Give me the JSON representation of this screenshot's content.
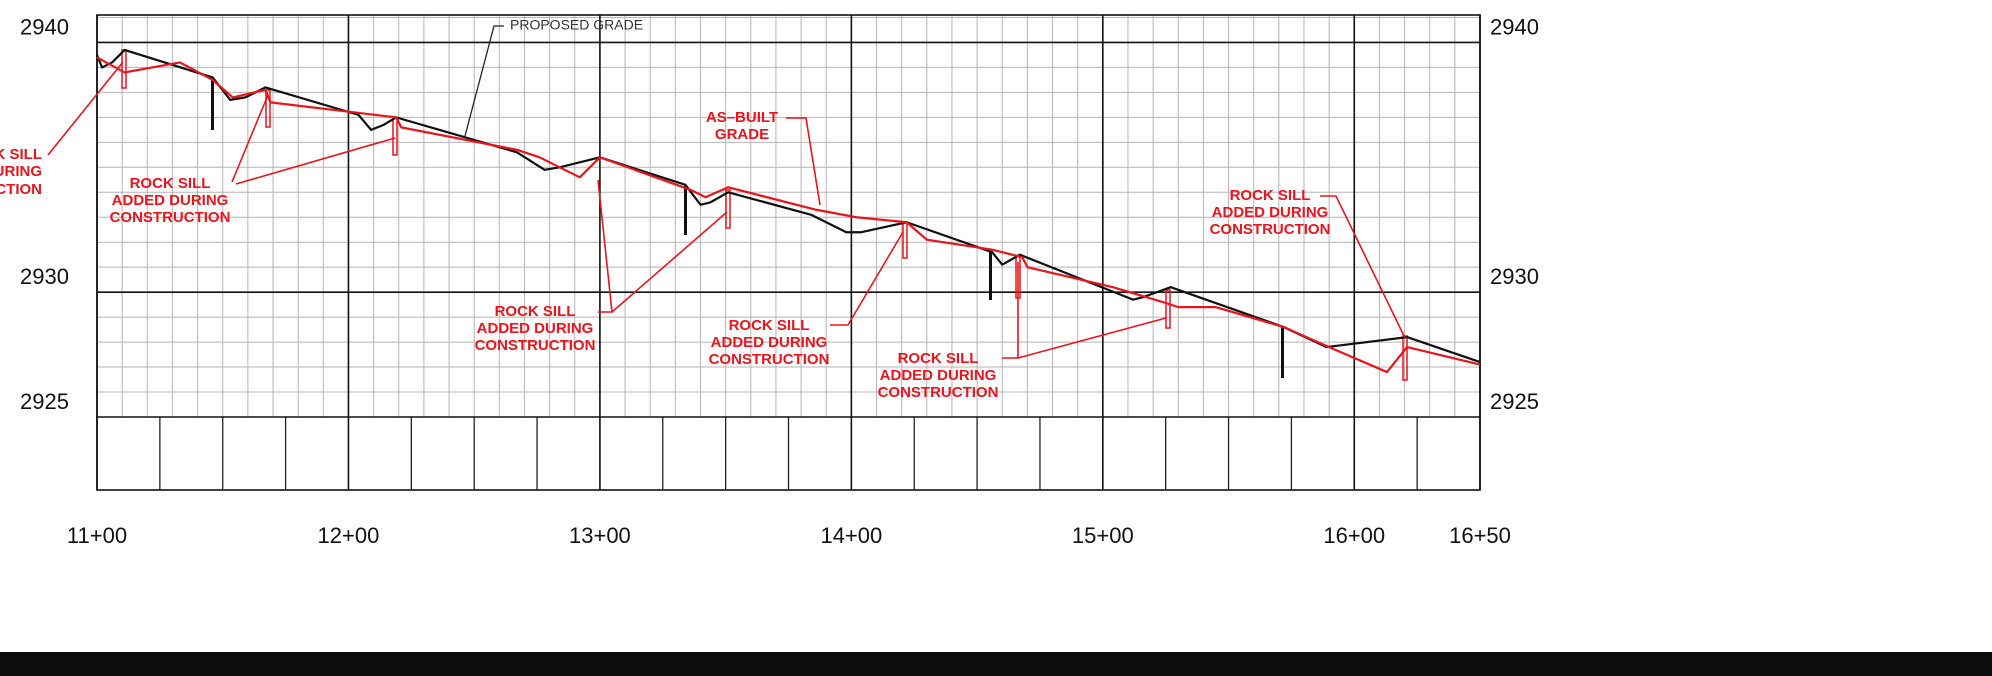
{
  "chart_data": {
    "type": "line",
    "xlim": [
      1100,
      1650
    ],
    "ylim": [
      2925,
      2941.1
    ],
    "xticks": [
      {
        "value": 1100,
        "label": "11+00"
      },
      {
        "value": 1200,
        "label": "12+00"
      },
      {
        "value": 1300,
        "label": "13+00"
      },
      {
        "value": 1400,
        "label": "14+00"
      },
      {
        "value": 1500,
        "label": "15+00"
      },
      {
        "value": 1600,
        "label": "16+00"
      },
      {
        "value": 1650,
        "label": "16+50"
      }
    ],
    "yticks": [
      2925,
      2930,
      2940
    ],
    "grid": true,
    "series": [
      {
        "color": "#111111",
        "x": [
          1100,
          1102,
          1106,
          1111,
          1146,
          1153,
          1159,
          1167,
          1204,
          1209,
          1214,
          1219,
          1267,
          1278,
          1284,
          1300,
          1334,
          1340,
          1344,
          1351,
          1384,
          1398,
          1404,
          1422,
          1456,
          1460,
          1467,
          1512,
          1516,
          1527,
          1572,
          1589,
          1621,
          1650
        ],
        "values": [
          2939.5,
          2939.0,
          2939.2,
          2939.7,
          2938.6,
          2937.7,
          2937.8,
          2938.2,
          2937.1,
          2936.5,
          2936.7,
          2937.0,
          2935.6,
          2934.9,
          2935.0,
          2935.4,
          2934.3,
          2933.5,
          2933.6,
          2934.0,
          2933.1,
          2932.4,
          2932.4,
          2932.8,
          2931.6,
          2931.1,
          2931.5,
          2929.7,
          2929.8,
          2930.2,
          2928.6,
          2927.8,
          2928.2,
          2927.2
        ]
      },
      {
        "color": "#e8141e",
        "x": [
          1100,
          1111,
          1133,
          1146,
          1154,
          1167,
          1169,
          1219,
          1221,
          1267,
          1276,
          1292,
          1300,
          1336,
          1342,
          1351,
          1386,
          1402,
          1422,
          1430,
          1456,
          1468,
          1470,
          1504,
          1524,
          1530,
          1545,
          1572,
          1590,
          1613,
          1621,
          1650
        ],
        "values": [
          2939.4,
          2938.8,
          2939.2,
          2938.5,
          2937.8,
          2938.1,
          2937.6,
          2937.0,
          2936.6,
          2935.7,
          2935.4,
          2934.6,
          2935.4,
          2934.1,
          2933.8,
          2934.2,
          2933.3,
          2933.0,
          2932.8,
          2932.1,
          2931.7,
          2931.4,
          2931.0,
          2930.2,
          2929.6,
          2929.4,
          2929.4,
          2928.6,
          2927.8,
          2926.8,
          2927.8,
          2927.1
        ]
      }
    ],
    "annotations": [
      [
        "PROPOSED GRADE"
      ],
      [
        "AS–BUILT",
        "GRADE"
      ],
      [
        "CK SILL",
        "DURING",
        "UCTION"
      ],
      [
        "ROCK SILL",
        "ADDED DURING",
        "CONSTRUCTION"
      ],
      [
        "ROCK SILL",
        "ADDED DURING",
        "CONSTRUCTION"
      ],
      [
        "ROCK SILL",
        "ADDED DURING",
        "CONSTRUCTION"
      ],
      [
        "ROCK SILL",
        "ADDED DURING",
        "CONSTRUCTION"
      ],
      [
        "ROCK SILL",
        "ADDED DURING",
        "CONSTRUCTION"
      ]
    ]
  }
}
